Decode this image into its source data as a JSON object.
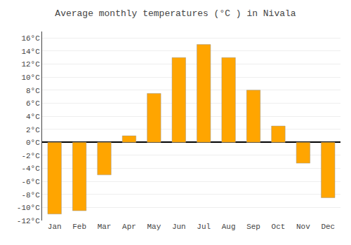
{
  "chart_data": {
    "type": "bar",
    "title": "Average monthly temperatures (°C ) in Nivala",
    "categories": [
      "Jan",
      "Feb",
      "Mar",
      "Apr",
      "May",
      "Jun",
      "Jul",
      "Aug",
      "Sep",
      "Oct",
      "Nov",
      "Dec"
    ],
    "values": [
      -11,
      -10.5,
      -5,
      1,
      7.5,
      13,
      15,
      13,
      8,
      2.5,
      -3.2,
      -8.5
    ],
    "color": "#FFA500",
    "ylim": [
      -12,
      17
    ],
    "yticks": [
      {
        "value": -12,
        "label": "-12°C"
      },
      {
        "value": -10,
        "label": "-10°C"
      },
      {
        "value": -8,
        "label": "-8°C"
      },
      {
        "value": -6,
        "label": "-6°C"
      },
      {
        "value": -4,
        "label": "-4°C"
      },
      {
        "value": -2,
        "label": "-2°C"
      },
      {
        "value": 0,
        "label": "0°C"
      },
      {
        "value": 2,
        "label": "2°C"
      },
      {
        "value": 4,
        "label": "4°C"
      },
      {
        "value": 6,
        "label": "6°C"
      },
      {
        "value": 8,
        "label": "8°C"
      },
      {
        "value": 10,
        "label": "10°C"
      },
      {
        "value": 12,
        "label": "12°C"
      },
      {
        "value": 14,
        "label": "14°C"
      },
      {
        "value": 16,
        "label": "16°C"
      }
    ],
    "grid": true
  }
}
